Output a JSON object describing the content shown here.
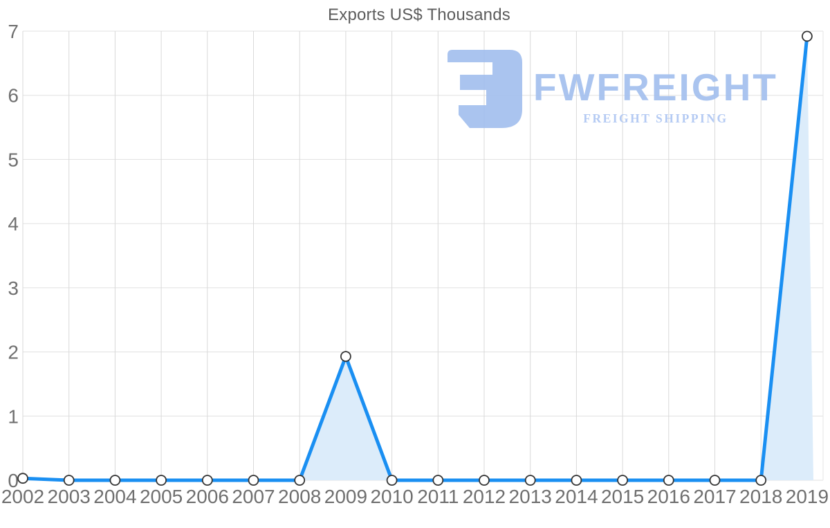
{
  "page": {
    "background": "#ffffff"
  },
  "logo": {
    "brand": "FWFREIGHT",
    "tagline": "FREIGHT SHIPPING",
    "brand_color": "#a3bfee",
    "tagline_color": "#aec6f2",
    "icon_color": "#a3bfee"
  },
  "chart_data": {
    "type": "area",
    "title": "Exports US$ Thousands",
    "categories": [
      "2002",
      "2003",
      "2004",
      "2005",
      "2006",
      "2007",
      "2008",
      "2009",
      "2010",
      "2011",
      "2012",
      "2013",
      "2014",
      "2015",
      "2016",
      "2017",
      "2018",
      "2019"
    ],
    "values": [
      0.03,
      0,
      0,
      0,
      0,
      0,
      0,
      1.93,
      0,
      0,
      0,
      0,
      0,
      0,
      0,
      0,
      0,
      6.92
    ],
    "xlabel": "",
    "ylabel": "",
    "ylim": [
      0,
      7
    ],
    "yticks": [
      0,
      1,
      2,
      3,
      4,
      5,
      6,
      7
    ],
    "grid": true,
    "legend": "none",
    "line_color": "#1a8ff2",
    "fill_color": "#dcecfa",
    "marker_fill": "#ffffff",
    "marker_stroke": "#333333",
    "grid_color": "#e0e0e0",
    "vgrid_color": "#d9d9d9",
    "border_color": "#e6e6e6",
    "tick_color": "#6f6f6f",
    "title_color": "#5c5c5c"
  }
}
